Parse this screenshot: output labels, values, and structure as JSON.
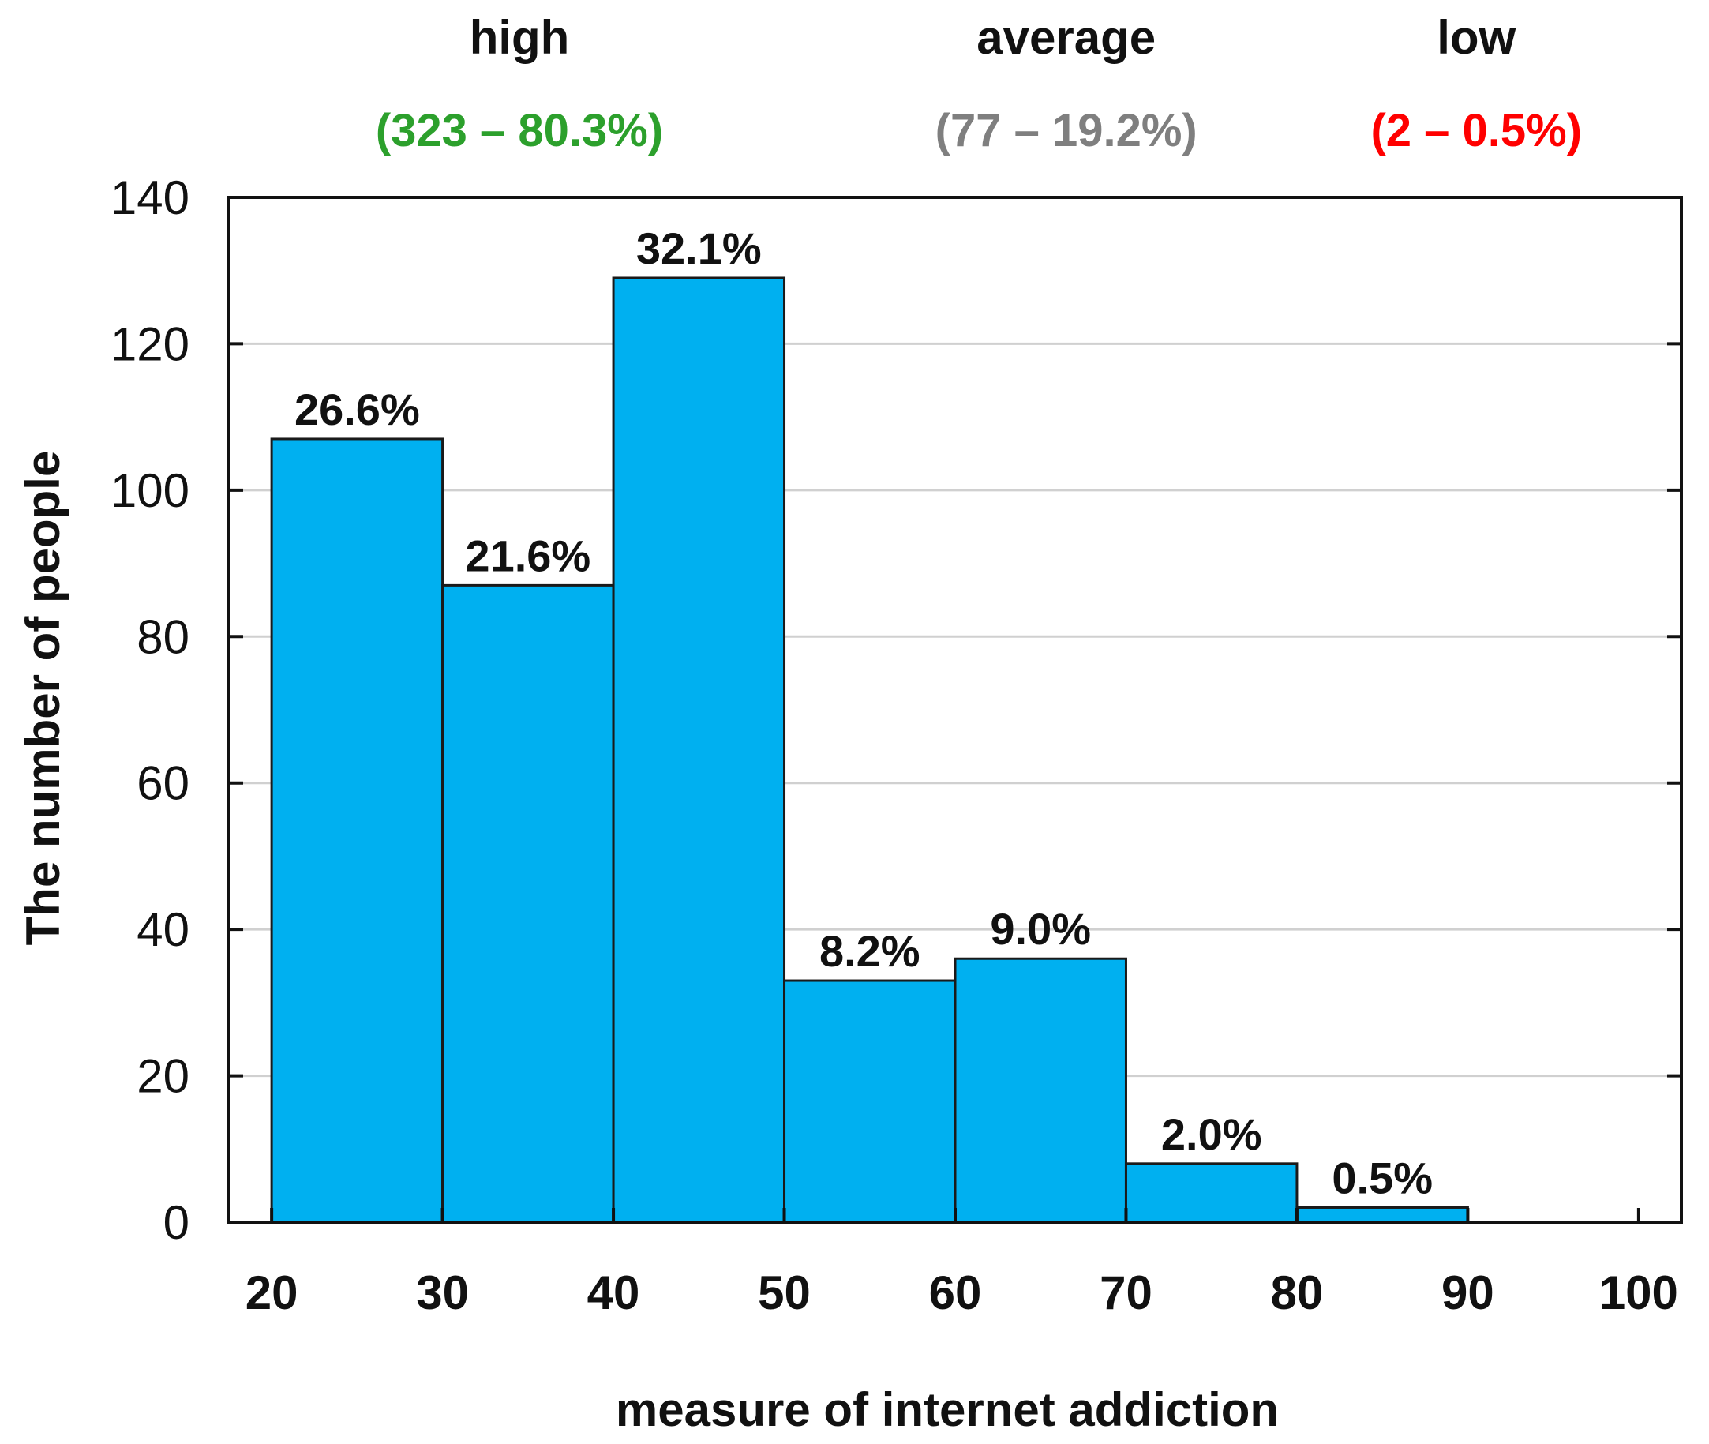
{
  "chart_data": {
    "type": "bar",
    "xlabel": "measure of internet addiction",
    "ylabel": "The number of people",
    "xlim": [
      17.5,
      102.5
    ],
    "ylim": [
      0,
      140
    ],
    "x_ticks": [
      20,
      30,
      40,
      50,
      60,
      70,
      80,
      90,
      100
    ],
    "y_ticks": [
      0,
      20,
      40,
      60,
      80,
      100,
      120,
      140
    ],
    "grid": "horizontal",
    "bar_color": "#00b0f0",
    "bins": [
      {
        "from": 20,
        "to": 30,
        "value": 107,
        "label": "26.6%"
      },
      {
        "from": 30,
        "to": 40,
        "value": 87,
        "label": "21.6%"
      },
      {
        "from": 40,
        "to": 50,
        "value": 129,
        "label": "32.1%"
      },
      {
        "from": 50,
        "to": 60,
        "value": 33,
        "label": "8.2%"
      },
      {
        "from": 60,
        "to": 70,
        "value": 36,
        "label": "9.0%"
      },
      {
        "from": 70,
        "to": 80,
        "value": 8,
        "label": "2.0%"
      },
      {
        "from": 80,
        "to": 90,
        "value": 2,
        "label": "0.5%"
      }
    ],
    "categories": [
      {
        "name": "high",
        "count": "(323 – 80.3%)",
        "color": "#2ca02c",
        "x_center": 34.5
      },
      {
        "name": "average",
        "count": "(77 – 19.2%)",
        "color": "#7f7f7f",
        "x_center": 66.5
      },
      {
        "name": "low",
        "count": "(2 – 0.5%)",
        "color": "#ff0000",
        "x_center": 90.5
      }
    ]
  }
}
